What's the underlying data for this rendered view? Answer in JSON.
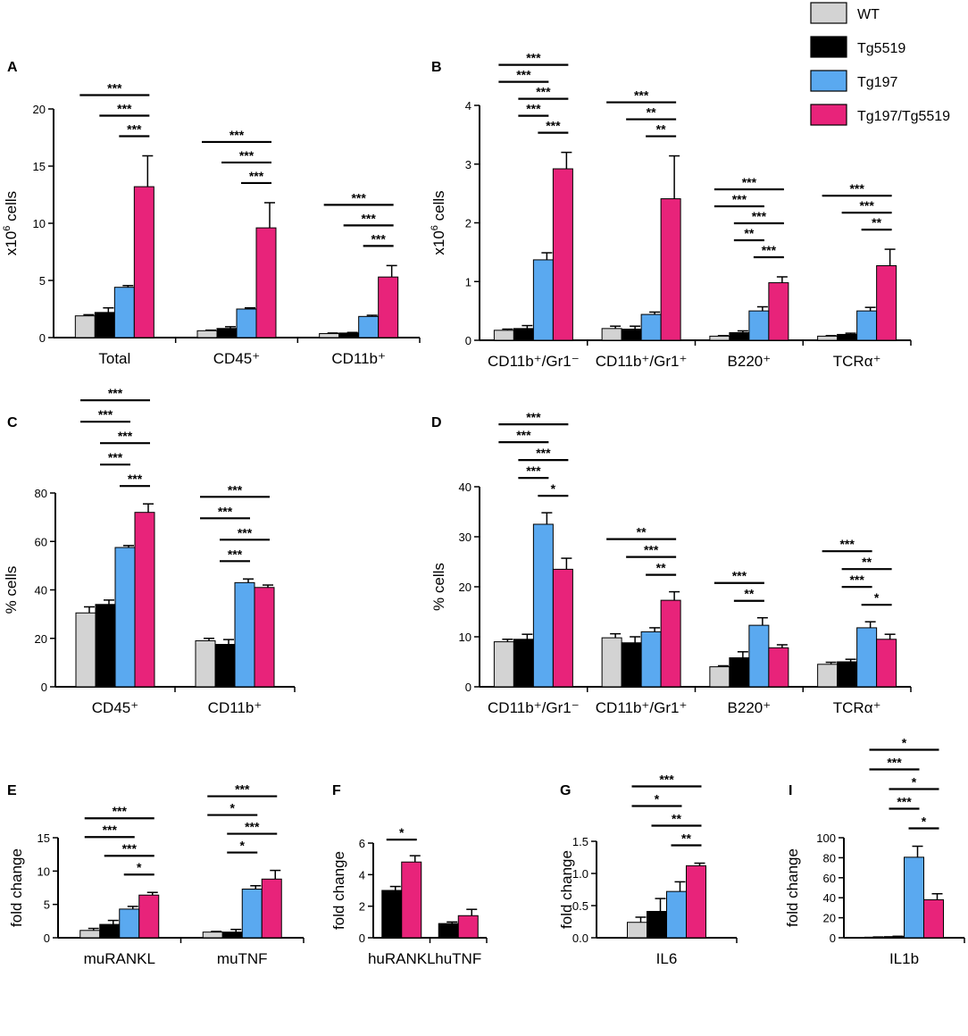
{
  "figure_label": "Multi-panel bar chart figure",
  "legend": [
    {
      "key": "WT",
      "label": "WT",
      "color": "#d3d3d3"
    },
    {
      "key": "Tg5519",
      "label": "Tg5519",
      "color": "#000000"
    },
    {
      "key": "Tg197",
      "label": "Tg197",
      "color": "#5aa9f0"
    },
    {
      "key": "Tg197/Tg5519",
      "label": "Tg197/Tg5519",
      "color": "#e8237a"
    }
  ],
  "chart_data": [
    {
      "panel": "A",
      "type": "bar",
      "ylabel": "x10^6 cells",
      "ylim": [
        0,
        20
      ],
      "yticks": [
        0,
        5,
        10,
        15,
        20
      ],
      "series_order": [
        "WT",
        "Tg5519",
        "Tg197",
        "Tg197/Tg5519"
      ],
      "groups": [
        {
          "label": "Total",
          "values": [
            1.9,
            2.2,
            4.4,
            13.2
          ],
          "errors": [
            0.1,
            0.4,
            0.15,
            2.7
          ]
        },
        {
          "label": "CD45⁺",
          "values": [
            0.6,
            0.8,
            2.5,
            9.6
          ],
          "errors": [
            0.05,
            0.15,
            0.1,
            2.2
          ]
        },
        {
          "label": "CD11b⁺",
          "values": [
            0.35,
            0.4,
            1.85,
            5.3
          ],
          "errors": [
            0.05,
            0.05,
            0.1,
            1.0
          ]
        }
      ],
      "significance": [
        {
          "group": 0,
          "from": 0,
          "to": 3,
          "label": "***"
        },
        {
          "group": 0,
          "from": 1,
          "to": 3,
          "label": "***"
        },
        {
          "group": 0,
          "from": 2,
          "to": 3,
          "label": "***"
        },
        {
          "group": 1,
          "from": 0,
          "to": 3,
          "label": "***"
        },
        {
          "group": 1,
          "from": 1,
          "to": 3,
          "label": "***"
        },
        {
          "group": 1,
          "from": 2,
          "to": 3,
          "label": "***"
        },
        {
          "group": 2,
          "from": 0,
          "to": 3,
          "label": "***"
        },
        {
          "group": 2,
          "from": 1,
          "to": 3,
          "label": "***"
        },
        {
          "group": 2,
          "from": 2,
          "to": 3,
          "label": "***"
        }
      ]
    },
    {
      "panel": "B",
      "type": "bar",
      "ylabel": "x10^6 cells",
      "ylim": [
        0,
        4
      ],
      "yticks": [
        0,
        1,
        2,
        3,
        4
      ],
      "series_order": [
        "WT",
        "Tg5519",
        "Tg197",
        "Tg197/Tg5519"
      ],
      "groups": [
        {
          "label": "CD11b⁺/Gr1⁻",
          "values": [
            0.17,
            0.2,
            1.37,
            2.92
          ],
          "errors": [
            0.02,
            0.05,
            0.12,
            0.28
          ]
        },
        {
          "label": "CD11b⁺/Gr1⁺",
          "values": [
            0.2,
            0.19,
            0.44,
            2.41
          ],
          "errors": [
            0.04,
            0.05,
            0.04,
            0.73
          ]
        },
        {
          "label": "B220⁺",
          "values": [
            0.07,
            0.13,
            0.5,
            0.98
          ],
          "errors": [
            0.01,
            0.03,
            0.07,
            0.1
          ]
        },
        {
          "label": "TCRα⁺",
          "values": [
            0.07,
            0.1,
            0.5,
            1.27
          ],
          "errors": [
            0.01,
            0.02,
            0.06,
            0.28
          ]
        }
      ],
      "significance": [
        {
          "group": 0,
          "from": 0,
          "to": 3,
          "label": "***"
        },
        {
          "group": 0,
          "from": 1,
          "to": 3,
          "label": "***"
        },
        {
          "group": 0,
          "from": 2,
          "to": 3,
          "label": "***"
        },
        {
          "group": 0,
          "from": 0,
          "to": 2,
          "label": "***"
        },
        {
          "group": 0,
          "from": 1,
          "to": 2,
          "label": "***"
        },
        {
          "group": 1,
          "from": 0,
          "to": 3,
          "label": "***"
        },
        {
          "group": 1,
          "from": 1,
          "to": 3,
          "label": "**"
        },
        {
          "group": 1,
          "from": 2,
          "to": 3,
          "label": "**"
        },
        {
          "group": 2,
          "from": 0,
          "to": 3,
          "label": "***"
        },
        {
          "group": 2,
          "from": 1,
          "to": 3,
          "label": "***"
        },
        {
          "group": 2,
          "from": 2,
          "to": 3,
          "label": "***"
        },
        {
          "group": 2,
          "from": 0,
          "to": 2,
          "label": "***"
        },
        {
          "group": 2,
          "from": 1,
          "to": 2,
          "label": "**"
        },
        {
          "group": 3,
          "from": 0,
          "to": 3,
          "label": "***"
        },
        {
          "group": 3,
          "from": 1,
          "to": 3,
          "label": "***"
        },
        {
          "group": 3,
          "from": 2,
          "to": 3,
          "label": "**"
        }
      ]
    },
    {
      "panel": "C",
      "type": "bar",
      "ylabel": "% cells",
      "ylim": [
        0,
        80
      ],
      "yticks": [
        0,
        20,
        40,
        60,
        80
      ],
      "series_order": [
        "WT",
        "Tg5519",
        "Tg197",
        "Tg197/Tg5519"
      ],
      "groups": [
        {
          "label": "CD45⁺",
          "values": [
            30.5,
            34.0,
            57.5,
            72.0
          ],
          "errors": [
            2.5,
            1.8,
            0.8,
            3.5
          ]
        },
        {
          "label": "CD11b⁺",
          "values": [
            19.0,
            17.5,
            43.0,
            41.0
          ],
          "errors": [
            1.0,
            2.0,
            1.5,
            1.0
          ]
        }
      ],
      "significance": [
        {
          "group": 0,
          "from": 0,
          "to": 3,
          "label": "***"
        },
        {
          "group": 0,
          "from": 1,
          "to": 3,
          "label": "***"
        },
        {
          "group": 0,
          "from": 2,
          "to": 3,
          "label": "***"
        },
        {
          "group": 0,
          "from": 0,
          "to": 2,
          "label": "***"
        },
        {
          "group": 0,
          "from": 1,
          "to": 2,
          "label": "***"
        },
        {
          "group": 1,
          "from": 0,
          "to": 3,
          "label": "***"
        },
        {
          "group": 1,
          "from": 1,
          "to": 3,
          "label": "***"
        },
        {
          "group": 1,
          "from": 0,
          "to": 2,
          "label": "***"
        },
        {
          "group": 1,
          "from": 1,
          "to": 2,
          "label": "***"
        }
      ]
    },
    {
      "panel": "D",
      "type": "bar",
      "ylabel": "% cells",
      "ylim": [
        0,
        40
      ],
      "yticks": [
        0,
        10,
        20,
        30,
        40
      ],
      "series_order": [
        "WT",
        "Tg5519",
        "Tg197",
        "Tg197/Tg5519"
      ],
      "groups": [
        {
          "label": "CD11b⁺/Gr1⁻",
          "values": [
            9.0,
            9.5,
            32.5,
            23.5
          ],
          "errors": [
            0.5,
            1.0,
            2.3,
            2.2
          ]
        },
        {
          "label": "CD11b⁺/Gr1⁺",
          "values": [
            9.8,
            8.8,
            11.0,
            17.3
          ],
          "errors": [
            0.8,
            1.2,
            0.8,
            1.7
          ]
        },
        {
          "label": "B220⁺",
          "values": [
            4.0,
            5.8,
            12.3,
            7.8
          ],
          "errors": [
            0.2,
            1.2,
            1.5,
            0.6
          ]
        },
        {
          "label": "TCRα⁺",
          "values": [
            4.5,
            5.0,
            11.8,
            9.5
          ],
          "errors": [
            0.4,
            0.5,
            1.2,
            1.0
          ]
        }
      ],
      "significance": [
        {
          "group": 0,
          "from": 0,
          "to": 3,
          "label": "***"
        },
        {
          "group": 0,
          "from": 1,
          "to": 3,
          "label": "***"
        },
        {
          "group": 0,
          "from": 2,
          "to": 3,
          "label": "*"
        },
        {
          "group": 0,
          "from": 0,
          "to": 2,
          "label": "***"
        },
        {
          "group": 0,
          "from": 1,
          "to": 2,
          "label": "***"
        },
        {
          "group": 1,
          "from": 0,
          "to": 3,
          "label": "**"
        },
        {
          "group": 1,
          "from": 1,
          "to": 3,
          "label": "***"
        },
        {
          "group": 1,
          "from": 2,
          "to": 3,
          "label": "**"
        },
        {
          "group": 2,
          "from": 0,
          "to": 2,
          "label": "***"
        },
        {
          "group": 2,
          "from": 1,
          "to": 2,
          "label": "**"
        },
        {
          "group": 3,
          "from": 1,
          "to": 3,
          "label": "**"
        },
        {
          "group": 3,
          "from": 2,
          "to": 3,
          "label": "*"
        },
        {
          "group": 3,
          "from": 0,
          "to": 2,
          "label": "***"
        },
        {
          "group": 3,
          "from": 1,
          "to": 2,
          "label": "***"
        }
      ]
    },
    {
      "panel": "E",
      "type": "bar",
      "ylabel": "fold change",
      "ylim": [
        0,
        15
      ],
      "yticks": [
        0,
        5,
        10,
        15
      ],
      "series_order": [
        "WT",
        "Tg5519",
        "Tg197",
        "Tg197/Tg5519"
      ],
      "groups": [
        {
          "label": "muRANKL",
          "values": [
            1.1,
            2.0,
            4.3,
            6.4
          ],
          "errors": [
            0.3,
            0.6,
            0.4,
            0.4
          ]
        },
        {
          "label": "muTNF",
          "values": [
            0.85,
            0.85,
            7.3,
            8.8
          ],
          "errors": [
            0.1,
            0.4,
            0.5,
            1.3
          ]
        }
      ],
      "significance": [
        {
          "group": 0,
          "from": 0,
          "to": 3,
          "label": "***"
        },
        {
          "group": 0,
          "from": 1,
          "to": 3,
          "label": "***"
        },
        {
          "group": 0,
          "from": 2,
          "to": 3,
          "label": "*"
        },
        {
          "group": 0,
          "from": 0,
          "to": 2,
          "label": "***"
        },
        {
          "group": 1,
          "from": 0,
          "to": 3,
          "label": "***"
        },
        {
          "group": 1,
          "from": 1,
          "to": 3,
          "label": "***"
        },
        {
          "group": 1,
          "from": 0,
          "to": 2,
          "label": "*"
        },
        {
          "group": 1,
          "from": 1,
          "to": 2,
          "label": "*"
        }
      ]
    },
    {
      "panel": "F",
      "type": "bar",
      "ylabel": "fold change",
      "ylim": [
        0,
        6
      ],
      "yticks": [
        0,
        2,
        4,
        6
      ],
      "series_order": [
        "Tg5519",
        "Tg197/Tg5519"
      ],
      "groups": [
        {
          "label": "huRANKL",
          "values": [
            3.0,
            4.8
          ],
          "errors": [
            0.25,
            0.4
          ]
        },
        {
          "label": "huTNF",
          "values": [
            0.9,
            1.4
          ],
          "errors": [
            0.1,
            0.4
          ]
        }
      ],
      "significance": [
        {
          "group": 0,
          "from": 0,
          "to": 1,
          "label": "*"
        }
      ]
    },
    {
      "panel": "G",
      "type": "bar",
      "ylabel": "fold change",
      "ylim": [
        0,
        1.5
      ],
      "yticks": [
        "0.0",
        "0.5",
        "1.0",
        "1.5"
      ],
      "series_order": [
        "WT",
        "Tg5519",
        "Tg197",
        "Tg197/Tg5519"
      ],
      "groups": [
        {
          "label": "IL6",
          "values": [
            0.24,
            0.41,
            0.72,
            1.12
          ],
          "errors": [
            0.08,
            0.2,
            0.15,
            0.04
          ]
        }
      ],
      "significance": [
        {
          "group": 0,
          "from": 0,
          "to": 3,
          "label": "***"
        },
        {
          "group": 0,
          "from": 1,
          "to": 3,
          "label": "**"
        },
        {
          "group": 0,
          "from": 2,
          "to": 3,
          "label": "**"
        },
        {
          "group": 0,
          "from": 0,
          "to": 2,
          "label": "*"
        }
      ]
    },
    {
      "panel": "I",
      "type": "bar",
      "ylabel": "fold change",
      "ylim": [
        0,
        100
      ],
      "yticks": [
        0,
        20,
        40,
        60,
        80,
        100
      ],
      "series_order": [
        "WT",
        "Tg5519",
        "Tg197",
        "Tg197/Tg5519"
      ],
      "groups": [
        {
          "label": "IL1b",
          "values": [
            0.6,
            1.2,
            80.5,
            38.0
          ],
          "errors": [
            0.2,
            0.3,
            11.0,
            6.0
          ]
        }
      ],
      "significance": [
        {
          "group": 0,
          "from": 0,
          "to": 3,
          "label": "*"
        },
        {
          "group": 0,
          "from": 1,
          "to": 3,
          "label": "*"
        },
        {
          "group": 0,
          "from": 2,
          "to": 3,
          "label": "*"
        },
        {
          "group": 0,
          "from": 0,
          "to": 2,
          "label": "***"
        },
        {
          "group": 0,
          "from": 1,
          "to": 2,
          "label": "***"
        }
      ]
    }
  ]
}
